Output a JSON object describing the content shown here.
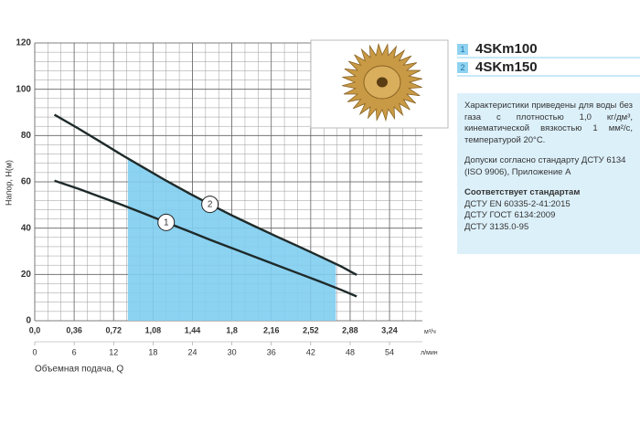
{
  "chart_data": {
    "type": "line",
    "y_label": "Напор, H(м)",
    "x_label": "Объемная подача, Q",
    "x_unit": "м³/ч",
    "x2_unit": "л/мин",
    "xlim": [
      0,
      3.54
    ],
    "xticks": [
      {
        "value": 0,
        "label": "0,0"
      },
      {
        "value": 0.36,
        "label": "0,36"
      },
      {
        "value": 0.72,
        "label": "0,72"
      },
      {
        "value": 1.08,
        "label": "1,08"
      },
      {
        "value": 1.44,
        "label": "1,44"
      },
      {
        "value": 1.8,
        "label": "1,8"
      },
      {
        "value": 2.16,
        "label": "2,16"
      },
      {
        "value": 2.52,
        "label": "2,52"
      },
      {
        "value": 2.88,
        "label": "2,88"
      },
      {
        "value": 3.24,
        "label": "3,24"
      }
    ],
    "x2lim": [
      0,
      59
    ],
    "x2ticks": [
      0,
      6,
      12,
      18,
      24,
      30,
      36,
      42,
      48,
      54
    ],
    "ylim": [
      0,
      120
    ],
    "yticks": [
      0,
      20,
      40,
      60,
      80,
      100,
      120
    ],
    "grid": true,
    "operating_range": [
      0.85,
      2.75
    ],
    "operating_range_color": "#7fcdef",
    "series": [
      {
        "name": "4SKm100",
        "marker": "1",
        "color": "#1e2a2a",
        "label_at_x": 1.2,
        "x": [
          0.18,
          0.4,
          0.6,
          0.8,
          1.0,
          1.2,
          1.4,
          1.6,
          1.8,
          2.0,
          2.2,
          2.4,
          2.6,
          2.8,
          2.94
        ],
        "values": [
          60.5,
          57,
          53.5,
          50,
          46.3,
          42.5,
          38.8,
          35,
          31.4,
          27.8,
          24.2,
          20.6,
          17,
          13.3,
          10.5
        ]
      },
      {
        "name": "4SKm150",
        "marker": "2",
        "color": "#1e2a2a",
        "label_at_x": 1.6,
        "x": [
          0.18,
          0.4,
          0.6,
          0.8,
          1.0,
          1.2,
          1.4,
          1.6,
          1.8,
          2.0,
          2.2,
          2.4,
          2.6,
          2.8,
          2.94
        ],
        "values": [
          89,
          83,
          77.3,
          71.5,
          66,
          60.5,
          55.3,
          50.3,
          45.5,
          41,
          36.6,
          32.3,
          27.9,
          23.4,
          19.8
        ]
      }
    ]
  },
  "panel": {
    "description": "Характеристики приведены для воды без газа с плотностью 1,0 кг/дм³, кинематической вязкостью 1 мм²/с, температурой 20°С.",
    "tolerance": "Допуски согласно стандарту ДСТУ 6134 (ISO 9906), Приложение А",
    "standards_title": "Соответствует стандартам",
    "standards": [
      "ДСТУ EN 60335-2-41:2015",
      "ДСТУ ГОСТ 6134:2009",
      "ДСТУ 3135.0-95"
    ]
  }
}
